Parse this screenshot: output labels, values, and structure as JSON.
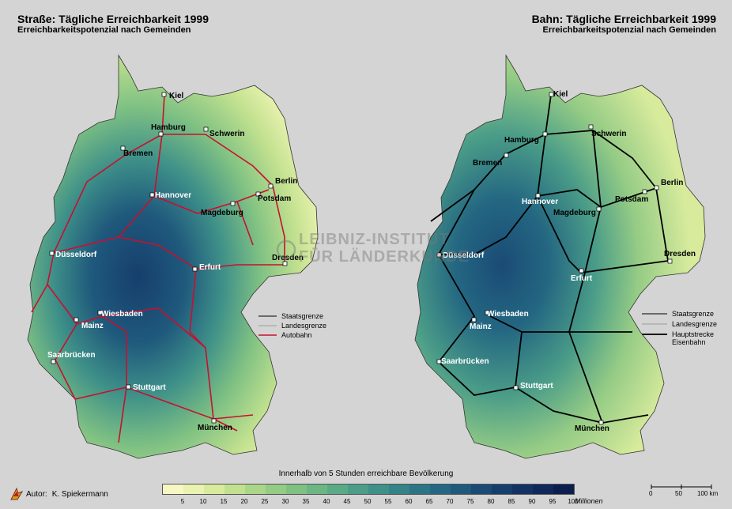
{
  "left": {
    "title": "Straße: Tägliche Erreichbarkeit 1999",
    "subtitle": "Erreichbarkeitspotenzial nach Gemeinden",
    "legend": [
      "Staatsgrenze",
      "Landesgrenze",
      "Autobahn"
    ],
    "network_color": "#c8102e",
    "cities": [
      "Kiel",
      "Hamburg",
      "Schwerin",
      "Bremen",
      "Berlin",
      "Potsdam",
      "Hannover",
      "Magdeburg",
      "Düsseldorf",
      "Dresden",
      "Erfurt",
      "Wiesbaden",
      "Mainz",
      "Saarbrücken",
      "Stuttgart",
      "München"
    ]
  },
  "right": {
    "title": "Bahn: Tägliche Erreichbarkeit 1999",
    "subtitle": "Erreichbarkeitspotenzial nach Gemeinden",
    "legend": [
      "Staatsgrenze",
      "Landesgrenze",
      "Hauptstrecke",
      "Eisenbahn"
    ],
    "network_color": "#000000",
    "cities": [
      "Kiel",
      "Hamburg",
      "Schwerin",
      "Bremen",
      "Berlin",
      "Potsdam",
      "Hannover",
      "Magdeburg",
      "Düsseldorf",
      "Dresden",
      "Erfurt",
      "Wiesbaden",
      "Mainz",
      "Saarbrücken",
      "Stuttgart",
      "München"
    ]
  },
  "scale_caption": "Innerhalb von 5 Stunden erreichbare Bevölkerung",
  "color_scale": {
    "ticks": [
      "5",
      "10",
      "15",
      "20",
      "25",
      "30",
      "35",
      "40",
      "45",
      "50",
      "55",
      "60",
      "65",
      "70",
      "75",
      "80",
      "85",
      "90",
      "95",
      "100"
    ],
    "units": "Millionen",
    "colors": [
      "#f7f7c4",
      "#eaf2b0",
      "#d8eb9c",
      "#c2e18f",
      "#abd689",
      "#94cb85",
      "#7fc183",
      "#6cb684",
      "#5aaa86",
      "#4b9d88",
      "#3e9089",
      "#338388",
      "#2b7586",
      "#246782",
      "#1f597c",
      "#1a4b75",
      "#163e6d",
      "#133264",
      "#10285a",
      "#0c1e4e"
    ]
  },
  "watermark": [
    "LEIBNIZ-INSTITUT",
    "FÜR LÄNDERKUNDE"
  ],
  "author": {
    "label": "Autor:",
    "name": "K. Spiekermann"
  },
  "scale_bar": {
    "labels": [
      "0",
      "50",
      "100 km"
    ]
  }
}
